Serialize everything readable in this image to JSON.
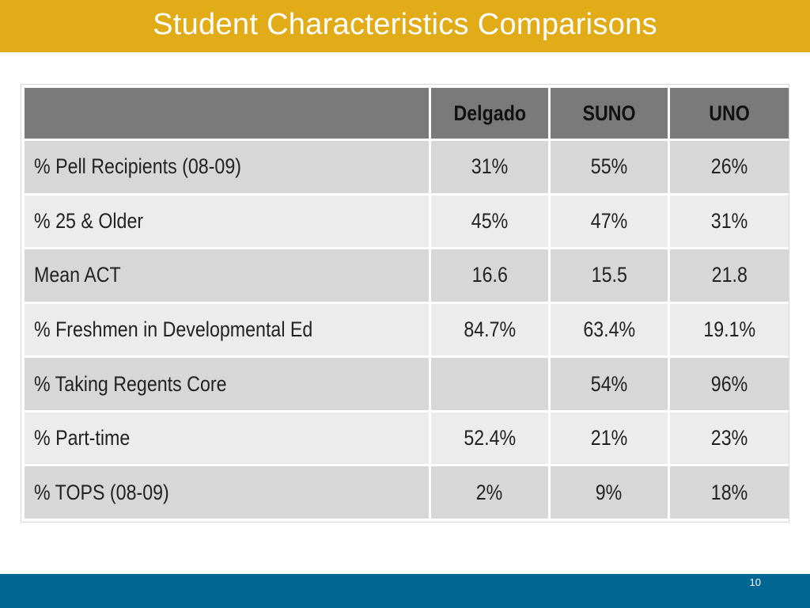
{
  "slide": {
    "title": "Student Characteristics Comparisons",
    "page_number": "10"
  },
  "colors": {
    "title_bar": "#E1AC18",
    "footer_bar": "#006795",
    "header_row": "#7a7a7a",
    "row_dark": "#d7d7d7",
    "row_light": "#ececec"
  },
  "table": {
    "headers": [
      "",
      "Delgado",
      "SUNO",
      "UNO"
    ],
    "rows": [
      [
        "% Pell Recipients (08-09)",
        "31%",
        "55%",
        "26%"
      ],
      [
        "% 25 & Older",
        "45%",
        "47%",
        "31%"
      ],
      [
        "Mean ACT",
        "16.6",
        "15.5",
        "21.8"
      ],
      [
        "% Freshmen in Developmental Ed",
        "84.7%",
        "63.4%",
        "19.1%"
      ],
      [
        "% Taking Regents Core",
        "",
        "54%",
        "96%"
      ],
      [
        "% Part-time",
        "52.4%",
        "21%",
        "23%"
      ],
      [
        "% TOPS (08-09)",
        "2%",
        "9%",
        "18%"
      ]
    ]
  }
}
